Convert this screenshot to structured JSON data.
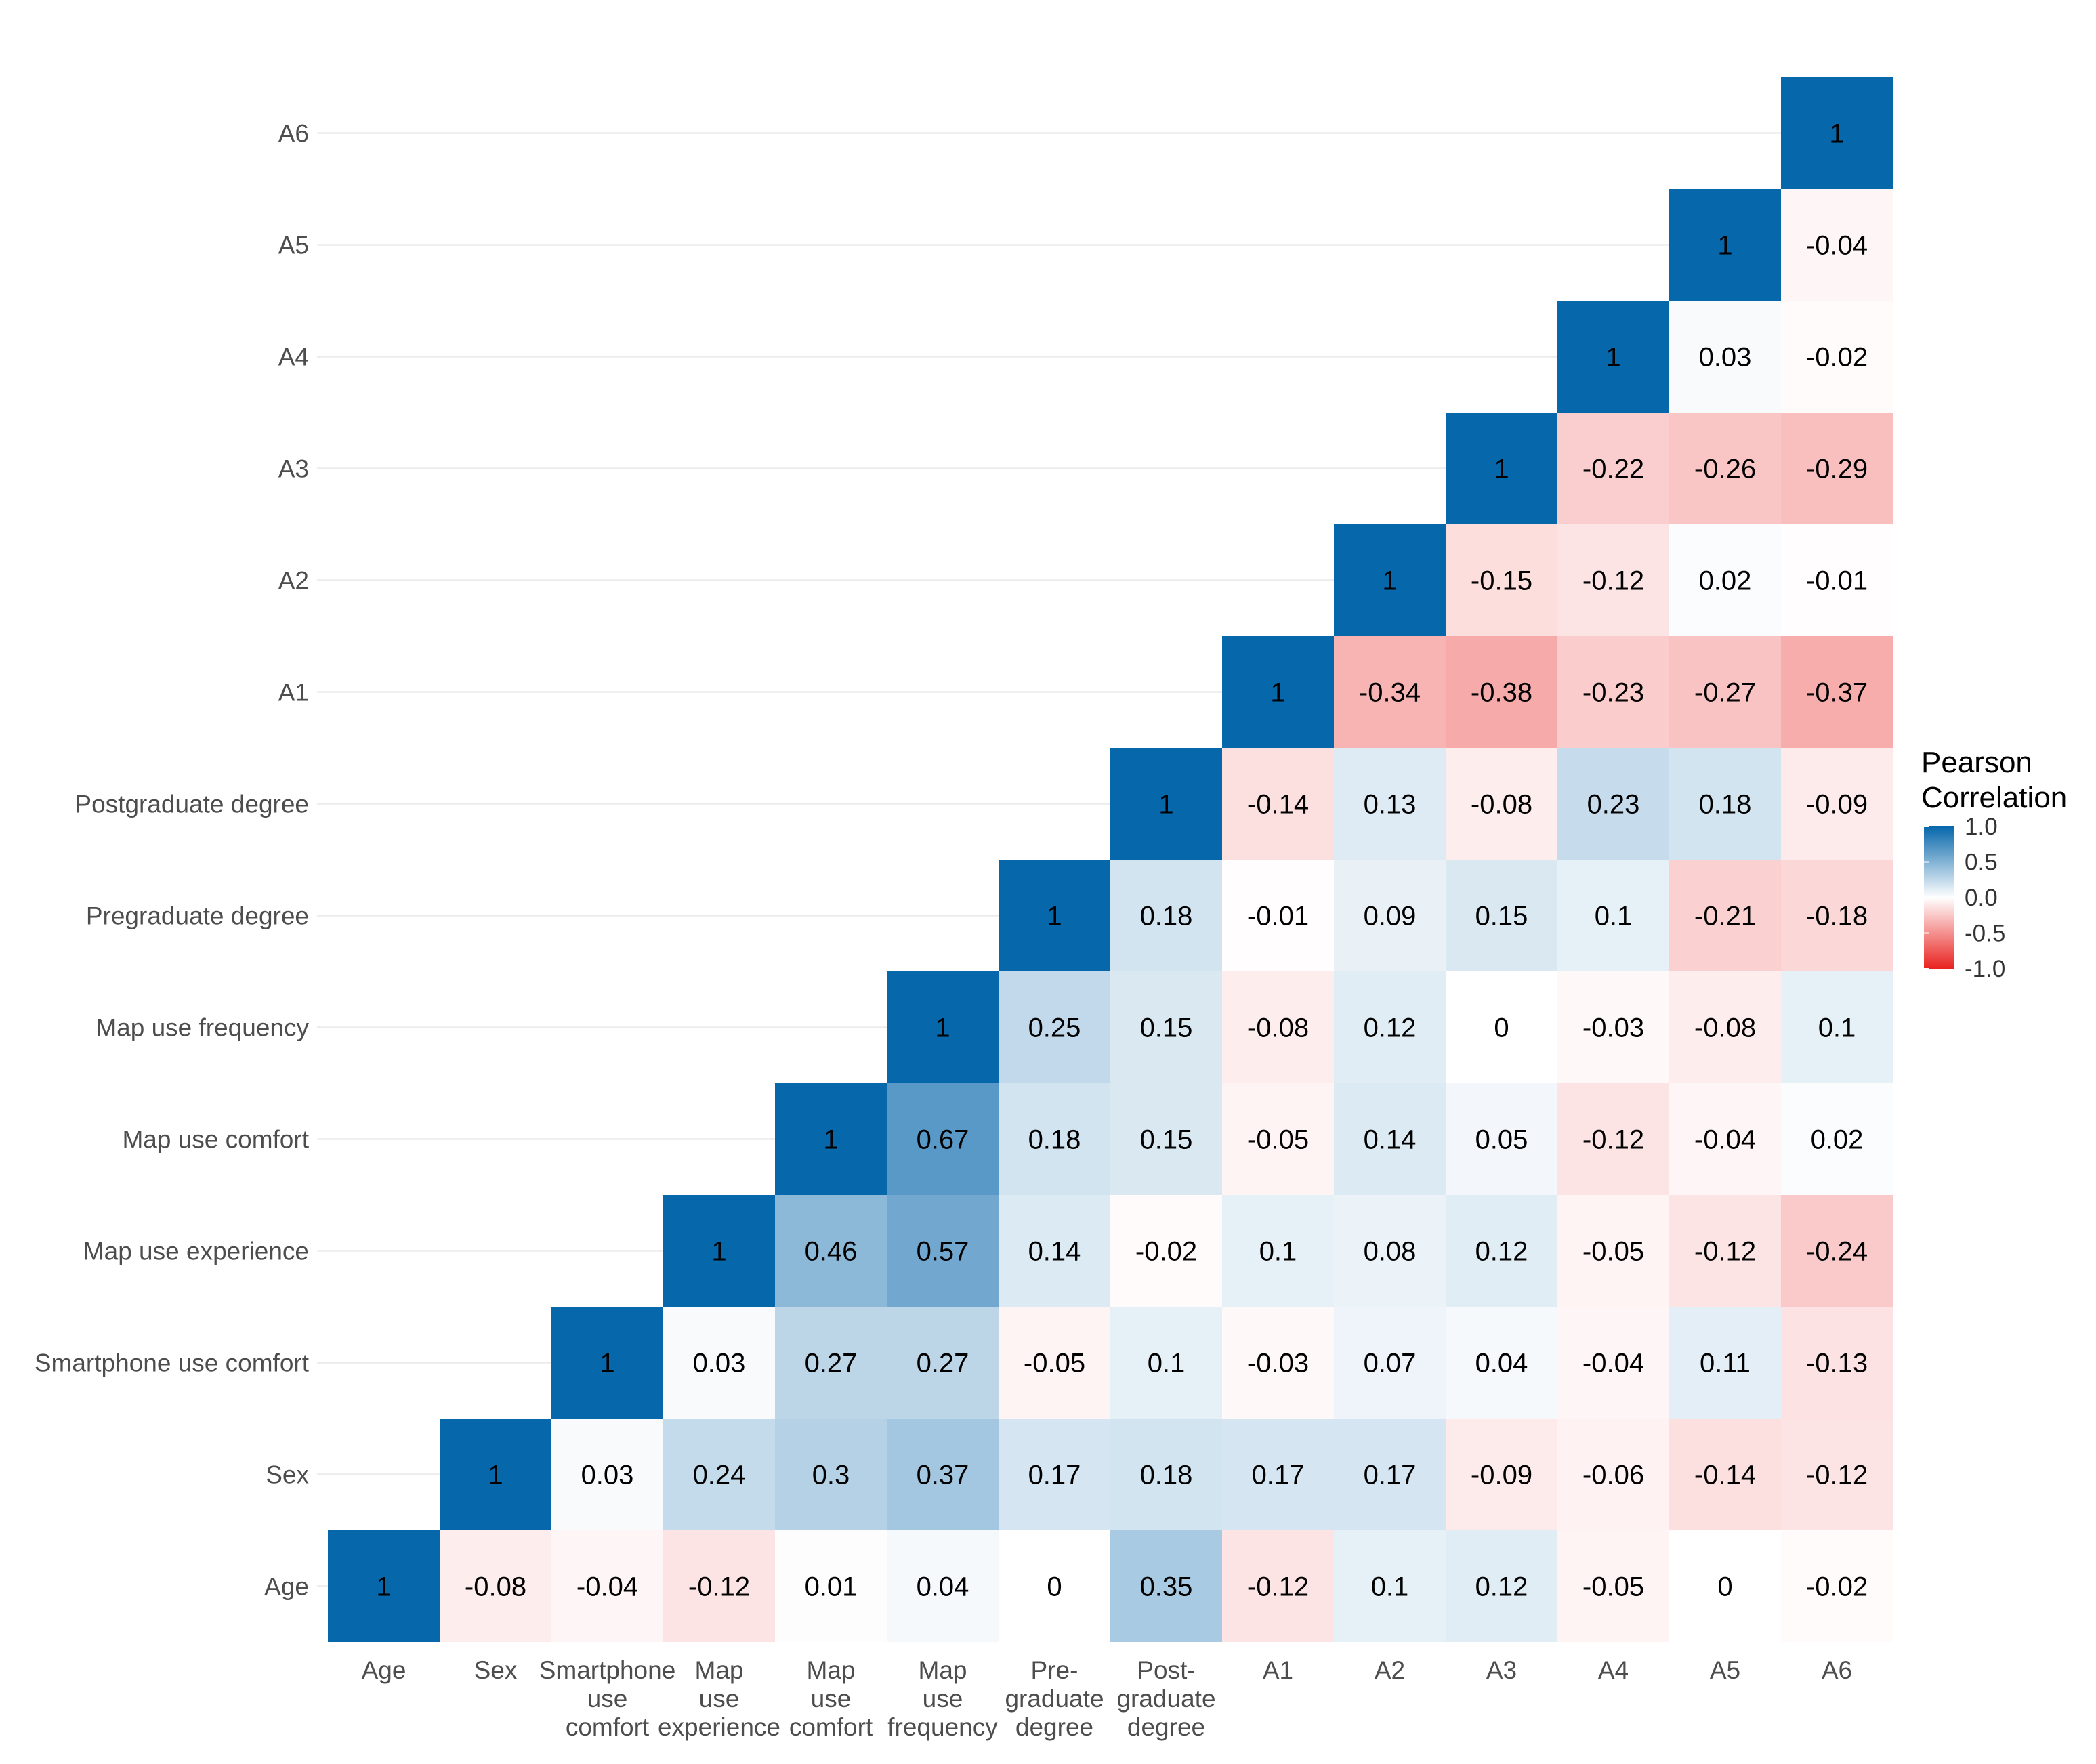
{
  "chart_data": {
    "type": "heatmap",
    "title": "",
    "xlabel": "",
    "ylabel": "",
    "variables": [
      "Age",
      "Sex",
      "Smartphone use comfort",
      "Map use experience",
      "Map use comfort",
      "Map use frequency",
      "Pregraduate degree",
      "Postgraduate degree",
      "A1",
      "A2",
      "A3",
      "A4",
      "A5",
      "A6"
    ],
    "x_tick_labels": [
      [
        "Age"
      ],
      [
        "Sex"
      ],
      [
        "Smartphone",
        "use",
        "comfort"
      ],
      [
        "Map",
        "use",
        "experience"
      ],
      [
        "Map",
        "use",
        "comfort"
      ],
      [
        "Map",
        "use",
        "frequency"
      ],
      [
        "Pre-",
        "graduate",
        "degree"
      ],
      [
        "Post-",
        "graduate",
        "degree"
      ],
      [
        "A1"
      ],
      [
        "A2"
      ],
      [
        "A3"
      ],
      [
        "A4"
      ],
      [
        "A5"
      ],
      [
        "A6"
      ]
    ],
    "cells": [
      {
        "row": "Age",
        "values": [
          "1",
          "-0.08",
          "-0.04",
          "-0.12",
          "0.01",
          "0.04",
          "0",
          "0.35",
          "-0.12",
          "0.1",
          "0.12",
          "-0.05",
          "0",
          "-0.02"
        ]
      },
      {
        "row": "Sex",
        "values": [
          "1",
          "0.03",
          "0.24",
          "0.3",
          "0.37",
          "0.17",
          "0.18",
          "0.17",
          "0.17",
          "-0.09",
          "-0.06",
          "-0.14",
          "-0.12"
        ]
      },
      {
        "row": "Smartphone use comfort",
        "values": [
          "1",
          "0.03",
          "0.27",
          "0.27",
          "-0.05",
          "0.1",
          "-0.03",
          "0.07",
          "0.04",
          "-0.04",
          "0.11",
          "-0.13"
        ]
      },
      {
        "row": "Map use experience",
        "values": [
          "1",
          "0.46",
          "0.57",
          "0.14",
          "-0.02",
          "0.1",
          "0.08",
          "0.12",
          "-0.05",
          "-0.12",
          "-0.24"
        ]
      },
      {
        "row": "Map use comfort",
        "values": [
          "1",
          "0.67",
          "0.18",
          "0.15",
          "-0.05",
          "0.14",
          "0.05",
          "-0.12",
          "-0.04",
          "0.02"
        ]
      },
      {
        "row": "Map use frequency",
        "values": [
          "1",
          "0.25",
          "0.15",
          "-0.08",
          "0.12",
          "0",
          "-0.03",
          "-0.08",
          "0.1"
        ]
      },
      {
        "row": "Pregraduate degree",
        "values": [
          "1",
          "0.18",
          "-0.01",
          "0.09",
          "0.15",
          "0.1",
          "-0.21",
          "-0.18"
        ]
      },
      {
        "row": "Postgraduate degree",
        "values": [
          "1",
          "-0.14",
          "0.13",
          "-0.08",
          "0.23",
          "0.18",
          "-0.09"
        ]
      },
      {
        "row": "A1",
        "values": [
          "1",
          "-0.34",
          "-0.38",
          "-0.23",
          "-0.27",
          "-0.37"
        ]
      },
      {
        "row": "A2",
        "values": [
          "1",
          "-0.15",
          "-0.12",
          "0.02",
          "-0.01"
        ]
      },
      {
        "row": "A3",
        "values": [
          "1",
          "-0.22",
          "-0.26",
          "-0.29"
        ]
      },
      {
        "row": "A4",
        "values": [
          "1",
          "0.03",
          "-0.02"
        ]
      },
      {
        "row": "A5",
        "values": [
          "1",
          "-0.04"
        ]
      },
      {
        "row": "A6",
        "values": [
          "1"
        ]
      }
    ],
    "color_scale": {
      "min": -1.0,
      "max": 1.0,
      "low_color": "#e8221f",
      "mid_color": "#ffffff",
      "high_color": "#0767ab"
    },
    "legend": {
      "title_lines": [
        "Pearson",
        "Correlation"
      ],
      "ticks": [
        "1.0",
        "0.5",
        "0.0",
        "-0.5",
        "-1.0"
      ],
      "placement": "right"
    }
  }
}
